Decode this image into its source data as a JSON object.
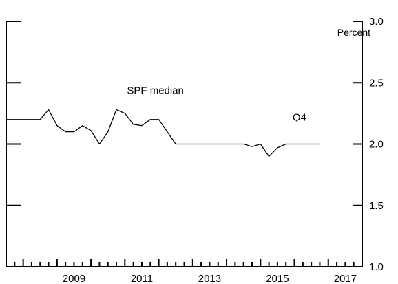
{
  "chart_data": {
    "type": "line",
    "title": "",
    "xlabel": "",
    "ylabel": "Percent",
    "ylim": [
      1.0,
      3.0
    ],
    "xlim": [
      2007.5,
      2018.0
    ],
    "yticks": [
      1.0,
      1.5,
      2.0,
      2.5,
      3.0
    ],
    "ytick_labels": [
      "1.0",
      "1.5",
      "2.0",
      "2.5",
      "3.0"
    ],
    "xticks": [
      2009,
      2011,
      2013,
      2015,
      2017
    ],
    "xtick_labels": [
      "2009",
      "2011",
      "2013",
      "2015",
      "2017"
    ],
    "grid": false,
    "annotations": [
      {
        "text": "SPF median",
        "x": 2011.9,
        "y": 2.41
      },
      {
        "text": "Q4",
        "x": 2016.15,
        "y": 2.19
      }
    ],
    "series": [
      {
        "x": [
          2007.5,
          2008.0,
          2008.25,
          2008.5,
          2008.75,
          2009.0,
          2009.25,
          2009.5,
          2009.75,
          2010.0,
          2010.25,
          2010.5,
          2010.75,
          2011.0,
          2011.25,
          2011.5,
          2011.75,
          2012.0,
          2012.25,
          2012.5,
          2012.75,
          2013.0,
          2013.5,
          2014.0,
          2014.5,
          2014.75,
          2015.0,
          2015.25,
          2015.5,
          2015.75,
          2016.0,
          2016.25,
          2016.5,
          2016.75
        ],
        "values": [
          2.2,
          2.2,
          2.2,
          2.2,
          2.28,
          2.15,
          2.1,
          2.1,
          2.15,
          2.11,
          2.0,
          2.1,
          2.28,
          2.25,
          2.16,
          2.15,
          2.2,
          2.2,
          2.1,
          2.0,
          2.0,
          2.0,
          2.0,
          2.0,
          2.0,
          1.98,
          2.0,
          1.9,
          1.97,
          2.0,
          2.0,
          2.0,
          2.0,
          2.0
        ],
        "color": "#000000"
      }
    ]
  }
}
